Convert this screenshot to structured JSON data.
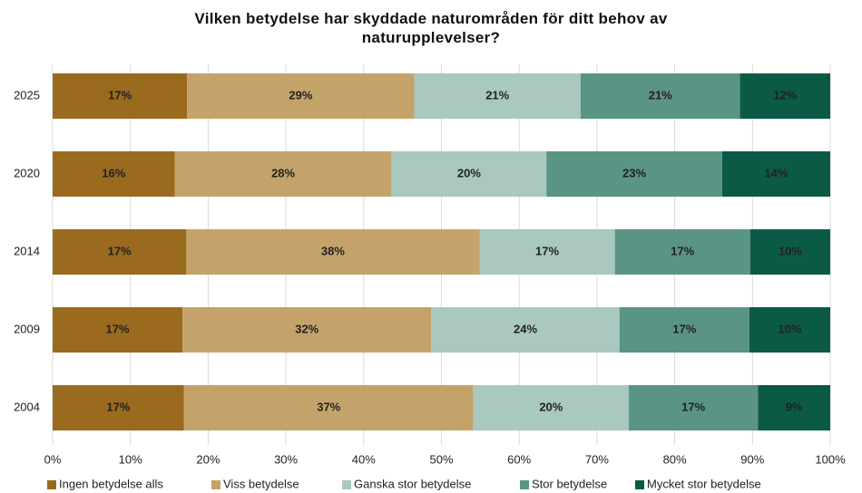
{
  "chart_data": {
    "type": "stacked-bar-horizontal",
    "title": "Vilken betydelse har skyddade naturområden för ditt behov av naturupplevelser?",
    "categories": [
      "2025",
      "2020",
      "2014",
      "2009",
      "2004"
    ],
    "series": [
      {
        "name": "Ingen betydelse alls",
        "color": "#9a6a1e",
        "values": [
          17.3,
          15.7,
          17.2,
          16.7,
          16.9
        ],
        "value_labels": [
          "17%",
          "16%",
          "17%",
          "17%",
          "17%"
        ]
      },
      {
        "name": "Viss betydelse",
        "color": "#c4a36a",
        "values": [
          29.2,
          27.9,
          37.7,
          32.0,
          37.2
        ],
        "value_labels": [
          "29%",
          "28%",
          "38%",
          "32%",
          "37%"
        ]
      },
      {
        "name": "Ganska stor betydelse",
        "color": "#a9c8bf",
        "values": [
          21.4,
          19.9,
          17.4,
          24.2,
          20.0
        ],
        "value_labels": [
          "21%",
          "20%",
          "17%",
          "24%",
          "20%"
        ]
      },
      {
        "name": "Stor betydelse",
        "color": "#5a9484",
        "values": [
          20.5,
          22.6,
          17.4,
          16.7,
          16.6
        ],
        "value_labels": [
          "21%",
          "23%",
          "17%",
          "17%",
          "17%"
        ]
      },
      {
        "name": "Mycket stor betydelse",
        "color": "#0b5a45",
        "values": [
          11.6,
          13.9,
          10.3,
          10.4,
          9.3
        ],
        "value_labels": [
          "12%",
          "14%",
          "10%",
          "10%",
          "9%"
        ]
      }
    ],
    "xlim": [
      0,
      100
    ],
    "xticks": [
      {
        "value": 0,
        "label": "0%"
      },
      {
        "value": 10,
        "label": "10%"
      },
      {
        "value": 20,
        "label": "20%"
      },
      {
        "value": 30,
        "label": "30%"
      },
      {
        "value": 40,
        "label": "40%"
      },
      {
        "value": 50,
        "label": "50%"
      },
      {
        "value": 60,
        "label": "60%"
      },
      {
        "value": 70,
        "label": "70%"
      },
      {
        "value": 80,
        "label": "80%"
      },
      {
        "value": 90,
        "label": "90%"
      },
      {
        "value": 100,
        "label": "100%"
      }
    ],
    "grid": true,
    "legend": "bottom"
  }
}
